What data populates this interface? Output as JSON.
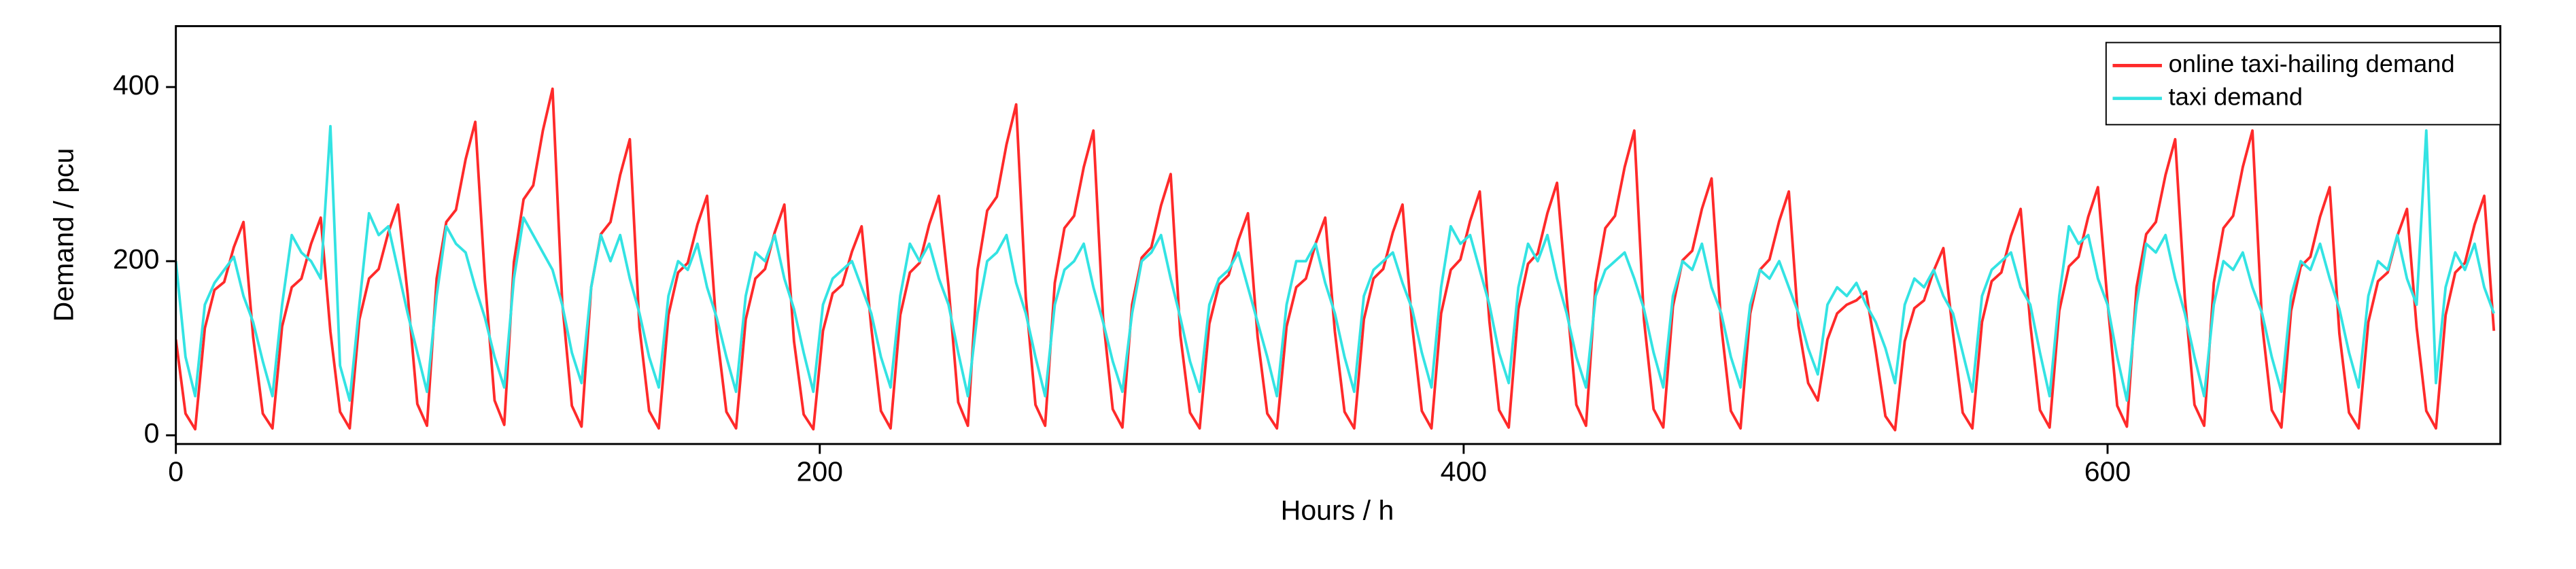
{
  "chart_data": {
    "type": "line",
    "xlabel": "Hours / h",
    "ylabel": "Demand / pcu",
    "xlim": [
      0,
      722
    ],
    "xticks": [
      0,
      200,
      400,
      600
    ],
    "ylim": [
      -10,
      470
    ],
    "yticks": [
      0,
      200,
      400
    ],
    "legend": "upper right",
    "x": [
      0,
      3,
      6,
      9,
      12,
      15,
      18,
      21,
      24,
      27,
      30,
      33,
      36,
      39,
      42,
      45,
      48,
      51,
      54,
      57,
      60,
      63,
      66,
      69,
      72,
      75,
      78,
      81,
      84,
      87,
      90,
      93,
      96,
      99,
      102,
      105,
      108,
      111,
      114,
      117,
      120,
      123,
      126,
      129,
      132,
      135,
      138,
      141,
      144,
      147,
      150,
      153,
      156,
      159,
      162,
      165,
      168,
      171,
      174,
      177,
      180,
      183,
      186,
      189,
      192,
      195,
      198,
      201,
      204,
      207,
      210,
      213,
      216,
      219,
      222,
      225,
      228,
      231,
      234,
      237,
      240,
      243,
      246,
      249,
      252,
      255,
      258,
      261,
      264,
      267,
      270,
      273,
      276,
      279,
      282,
      285,
      288,
      291,
      294,
      297,
      300,
      303,
      306,
      309,
      312,
      315,
      318,
      321,
      324,
      327,
      330,
      333,
      336,
      339,
      342,
      345,
      348,
      351,
      354,
      357,
      360,
      363,
      366,
      369,
      372,
      375,
      378,
      381,
      384,
      387,
      390,
      393,
      396,
      399,
      402,
      405,
      408,
      411,
      414,
      417,
      420,
      423,
      426,
      429,
      432,
      435,
      438,
      441,
      444,
      447,
      450,
      453,
      456,
      459,
      462,
      465,
      468,
      471,
      474,
      477,
      480,
      483,
      486,
      489,
      492,
      495,
      498,
      501,
      504,
      507,
      510,
      513,
      516,
      519,
      522,
      525,
      528,
      531,
      534,
      537,
      540,
      543,
      546,
      549,
      552,
      555,
      558,
      561,
      564,
      567,
      570,
      573,
      576,
      579,
      582,
      585,
      588,
      591,
      594,
      597,
      600,
      603,
      606,
      609,
      612,
      615,
      618,
      621,
      624,
      627,
      630,
      633,
      636,
      639,
      642,
      645,
      648,
      651,
      654,
      657,
      660,
      663,
      666,
      669,
      672,
      675,
      678,
      681,
      684,
      687,
      690,
      693,
      696,
      699,
      702,
      705,
      708,
      711,
      714,
      717,
      720
    ],
    "series": [
      {
        "name": "online taxi-hailing demand",
        "color": "#ff2a2a",
        "values": [
          110,
          25,
          7,
          123,
          167,
          176,
          216,
          245,
          113,
          25,
          8,
          125,
          170,
          180,
          220,
          250,
          119,
          27,
          8,
          133,
          180,
          191,
          233,
          265,
          162,
          36,
          11,
          180,
          245,
          259,
          317,
          360,
          179,
          40,
          12,
          199,
          271,
          287,
          350,
          398,
          153,
          34,
          10,
          170,
          231,
          245,
          299,
          340,
          124,
          28,
          8,
          138,
          187,
          198,
          242,
          275,
          119,
          27,
          8,
          133,
          180,
          191,
          233,
          265,
          108,
          24,
          7,
          120,
          163,
          173,
          211,
          240,
          124,
          28,
          8,
          138,
          187,
          198,
          242,
          275,
          171,
          38,
          11,
          190,
          258,
          274,
          334,
          380,
          158,
          35,
          11,
          175,
          238,
          252,
          308,
          350,
          135,
          30,
          9,
          150,
          204,
          216,
          264,
          300,
          115,
          26,
          8,
          128,
          173,
          184,
          224,
          255,
          113,
          25,
          8,
          125,
          170,
          180,
          220,
          250,
          119,
          27,
          8,
          133,
          180,
          191,
          233,
          265,
          126,
          28,
          8,
          140,
          190,
          202,
          246,
          280,
          131,
          29,
          9,
          145,
          197,
          209,
          255,
          290,
          158,
          35,
          11,
          175,
          238,
          252,
          308,
          350,
          133,
          30,
          9,
          148,
          201,
          212,
          260,
          295,
          126,
          28,
          8,
          140,
          190,
          202,
          246,
          280,
          126,
          60,
          40,
          110,
          140,
          150,
          155,
          165,
          97,
          22,
          6,
          108,
          146,
          155,
          189,
          215,
          117,
          26,
          8,
          130,
          177,
          187,
          229,
          260,
          128,
          29,
          9,
          143,
          194,
          205,
          251,
          285,
          153,
          34,
          10,
          170,
          231,
          245,
          299,
          340,
          158,
          35,
          11,
          175,
          238,
          252,
          308,
          350,
          128,
          29,
          9,
          143,
          194,
          205,
          251,
          285,
          117,
          26,
          8,
          130,
          177,
          187,
          229,
          260,
          124,
          28,
          8,
          138,
          187,
          198,
          242,
          275,
          120
        ]
      },
      {
        "name": "taxi demand",
        "color": "#33e3e3",
        "values": [
          200,
          90,
          45,
          150,
          175,
          190,
          205,
          160,
          130,
          85,
          45,
          150,
          230,
          210,
          200,
          180,
          355,
          80,
          40,
          150,
          255,
          230,
          240,
          190,
          140,
          95,
          50,
          160,
          240,
          220,
          210,
          170,
          135,
          90,
          55,
          180,
          250,
          230,
          210,
          190,
          150,
          95,
          60,
          170,
          230,
          200,
          230,
          180,
          140,
          90,
          55,
          160,
          200,
          190,
          220,
          170,
          135,
          90,
          50,
          160,
          210,
          200,
          230,
          180,
          145,
          95,
          50,
          150,
          180,
          190,
          200,
          170,
          140,
          90,
          55,
          160,
          220,
          200,
          220,
          180,
          150,
          95,
          45,
          140,
          200,
          210,
          230,
          175,
          140,
          90,
          45,
          150,
          190,
          200,
          220,
          170,
          130,
          85,
          50,
          140,
          200,
          210,
          230,
          180,
          135,
          85,
          50,
          150,
          180,
          190,
          210,
          170,
          130,
          90,
          45,
          150,
          200,
          200,
          220,
          175,
          140,
          90,
          50,
          160,
          190,
          200,
          210,
          175,
          145,
          95,
          55,
          170,
          240,
          220,
          230,
          190,
          150,
          95,
          60,
          170,
          220,
          200,
          230,
          180,
          140,
          90,
          55,
          160,
          190,
          200,
          210,
          180,
          145,
          95,
          55,
          160,
          200,
          190,
          220,
          170,
          140,
          90,
          55,
          150,
          190,
          180,
          200,
          170,
          140,
          100,
          70,
          150,
          170,
          160,
          175,
          150,
          130,
          100,
          60,
          150,
          180,
          170,
          190,
          160,
          140,
          95,
          50,
          160,
          190,
          200,
          210,
          170,
          150,
          95,
          45,
          160,
          240,
          220,
          230,
          180,
          150,
          90,
          40,
          150,
          220,
          210,
          230,
          180,
          140,
          90,
          45,
          150,
          200,
          190,
          210,
          170,
          140,
          90,
          50,
          160,
          200,
          190,
          220,
          180,
          145,
          95,
          55,
          160,
          200,
          190,
          230,
          180,
          150,
          350,
          60,
          170,
          210,
          190,
          220,
          170,
          140
        ]
      }
    ]
  }
}
